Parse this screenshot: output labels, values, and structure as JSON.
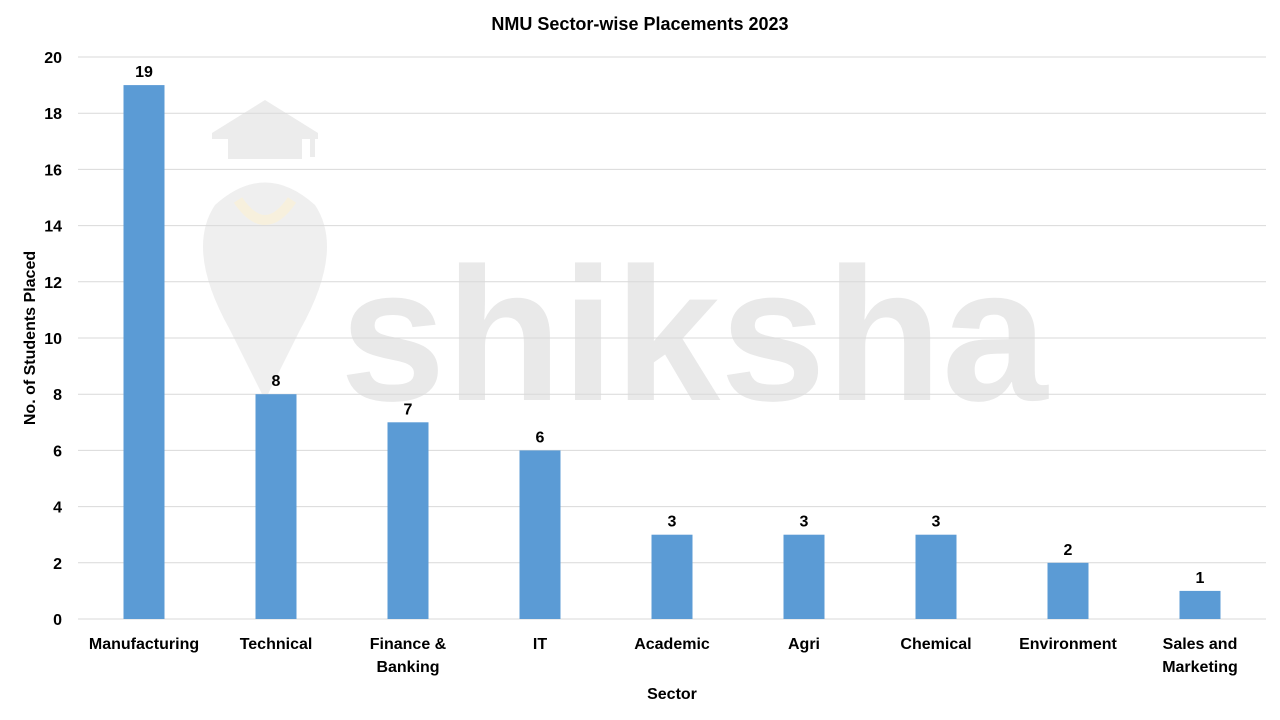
{
  "chart_data": {
    "type": "bar",
    "title": "NMU Sector-wise Placements 2023",
    "xlabel": "Sector",
    "ylabel": "No. of Students Placed",
    "categories": [
      [
        "Manufacturing"
      ],
      [
        "Technical"
      ],
      [
        "Finance &",
        "Banking"
      ],
      [
        "IT"
      ],
      [
        "Academic"
      ],
      [
        "Agri"
      ],
      [
        "Chemical"
      ],
      [
        "Environment"
      ],
      [
        "Sales and",
        "Marketing"
      ]
    ],
    "values": [
      19,
      8,
      7,
      6,
      3,
      3,
      3,
      2,
      1
    ],
    "ylim": [
      0,
      20
    ],
    "yticks": [
      0,
      2,
      4,
      6,
      8,
      10,
      12,
      14,
      16,
      18,
      20
    ],
    "grid": true,
    "legend": "none",
    "bar_color": "#5b9bd5",
    "grid_color": "#d9d9d9"
  },
  "watermark": {
    "text": "shiksha"
  }
}
